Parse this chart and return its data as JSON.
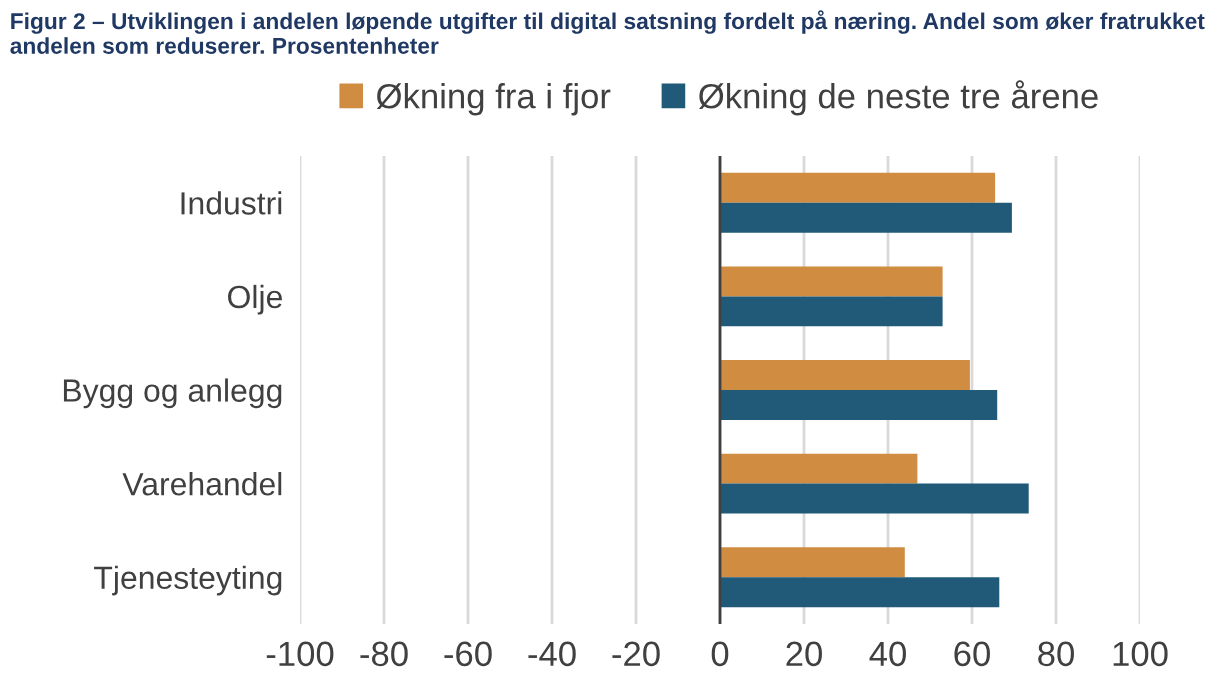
{
  "chart_data": {
    "type": "bar",
    "orientation": "horizontal",
    "title": "Figur 2 – Utviklingen i andelen løpende utgifter til digital satsning fordelt på næring. Andel som øker fratrukket andelen som reduserer. Prosentenheter",
    "categories": [
      "Industri",
      "Olje",
      "Bygg og anlegg",
      "Varehandel",
      "Tjenesteyting"
    ],
    "series": [
      {
        "name": "Økning fra i fjor",
        "color": "#d08c40",
        "values": [
          65.5,
          53,
          59.5,
          47,
          44
        ]
      },
      {
        "name": "Økning de neste tre årene",
        "color": "#215a78",
        "values": [
          69.5,
          53,
          66,
          73.5,
          66.5
        ]
      }
    ],
    "xlim": [
      -100,
      100
    ],
    "xticks": [
      -100,
      -80,
      -60,
      -40,
      -20,
      0,
      20,
      40,
      60,
      80,
      100
    ],
    "grid": "x",
    "legend": "top"
  }
}
